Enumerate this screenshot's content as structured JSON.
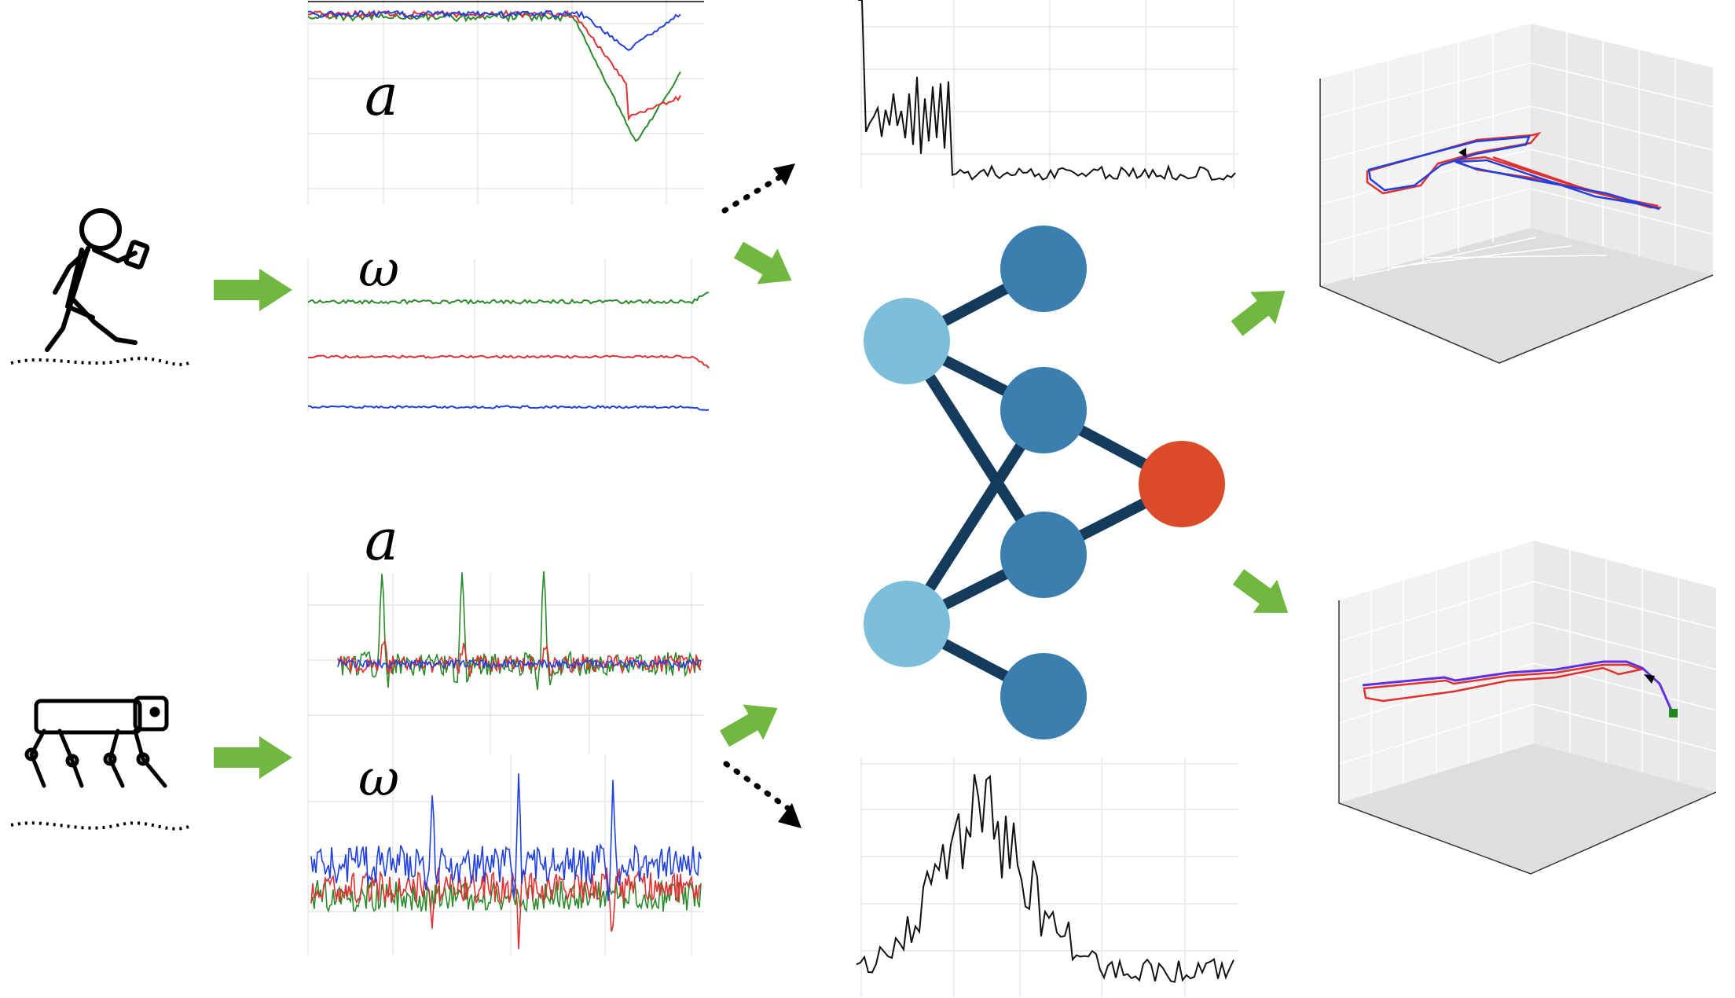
{
  "labels": {
    "accel_symbol": "a",
    "gyro_symbol": "ω"
  },
  "colors": {
    "arrow_green": "#70b840",
    "node_light": "#7bbfdb",
    "node_mid": "#3a7fb0",
    "node_output": "#db4b2a",
    "edge": "#143a5c",
    "axis_x": "#e03030",
    "axis_y": "#2a8a2a",
    "axis_z": "#2040e0",
    "spectrum": "#111111"
  },
  "icons": {
    "pedestrian": "pedestrian-with-phone-icon",
    "robot_dog": "quadruped-robot-icon",
    "green_arrow": "right-arrow-icon",
    "dotted_arrow": "dotted-arrow-icon"
  }
}
